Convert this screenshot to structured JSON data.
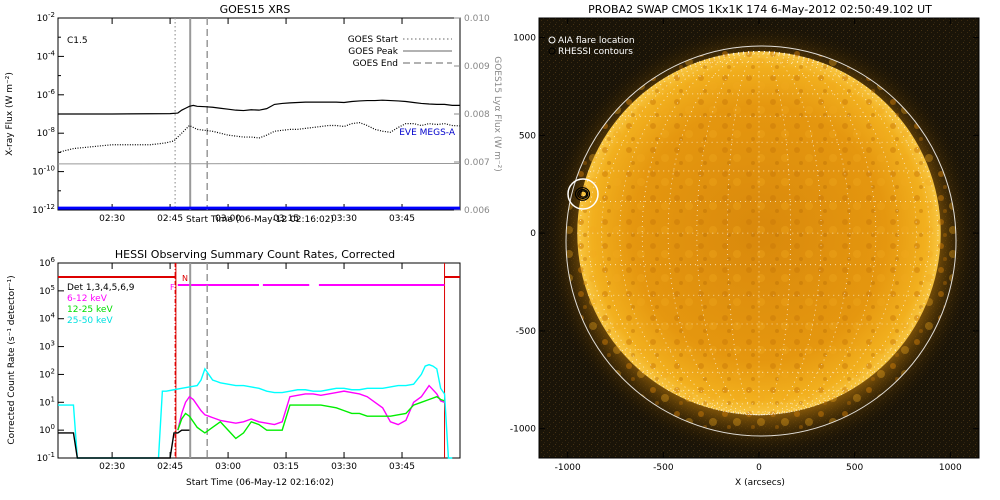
{
  "chart_data": [
    {
      "id": "goes",
      "type": "line",
      "title": "GOES15 XRS",
      "xlabel": "Start Time (06-May-12 02:16:02)",
      "ylabel_left": "X-ray Flux (W m⁻²)",
      "ylabel_right": "GOES15 Lyα Flux (W m⁻²)",
      "annotation_class": "C1.5",
      "x_tick_labels": [
        "02:30",
        "02:45",
        "03:00",
        "03:15",
        "03:30",
        "03:45"
      ],
      "x_tick_minutes": [
        30,
        45,
        60,
        75,
        90,
        105
      ],
      "xlim_minutes": [
        16,
        120
      ],
      "ylim_log": [
        -12,
        -2
      ],
      "y_left_tick_exps": [
        "-2",
        "-4",
        "-6",
        "-8",
        "-10",
        "-12"
      ],
      "y_right_ticks": [
        "0.010",
        "0.009",
        "0.008",
        "0.007",
        "0.006"
      ],
      "ylim_right": [
        0.006,
        0.01
      ],
      "legend": [
        {
          "label": "GOES Start",
          "style": "dotted"
        },
        {
          "label": "GOES Peak",
          "style": "solid"
        },
        {
          "label": "GOES End",
          "style": "dashed"
        }
      ],
      "eve_label": "EVE MEGS-A",
      "colors": {
        "eve": "#0000ff",
        "lya": "#999999",
        "markers": "#a0a0a0"
      },
      "marker_minutes": {
        "start": 46.3,
        "peak": 50.2,
        "end": 54.6
      },
      "series": [
        {
          "key": "long",
          "style": "solid",
          "x": [
            16,
            30,
            45,
            47,
            48,
            49,
            50,
            51,
            52,
            54,
            56,
            58,
            60,
            62,
            64,
            66,
            68,
            70,
            72,
            74,
            76,
            78,
            80,
            82,
            84,
            86,
            88,
            90,
            92,
            94,
            96,
            98,
            100,
            102,
            104,
            106,
            108,
            110,
            112,
            114,
            116,
            118,
            120
          ],
          "log_y": [
            -7.0,
            -7.0,
            -6.98,
            -6.95,
            -6.8,
            -6.7,
            -6.6,
            -6.55,
            -6.6,
            -6.62,
            -6.65,
            -6.7,
            -6.75,
            -6.8,
            -6.82,
            -6.78,
            -6.8,
            -6.72,
            -6.5,
            -6.45,
            -6.42,
            -6.4,
            -6.38,
            -6.38,
            -6.38,
            -6.38,
            -6.38,
            -6.4,
            -6.35,
            -6.32,
            -6.3,
            -6.3,
            -6.28,
            -6.3,
            -6.32,
            -6.35,
            -6.4,
            -6.45,
            -6.48,
            -6.5,
            -6.5,
            -6.55,
            -6.55
          ]
        },
        {
          "key": "short",
          "style": "dotted",
          "x": [
            16,
            20,
            25,
            30,
            35,
            40,
            44,
            46,
            48,
            50,
            52,
            54,
            56,
            58,
            60,
            62,
            64,
            66,
            68,
            70,
            72,
            74,
            76,
            78,
            80,
            82,
            84,
            86,
            88,
            90,
            92,
            94,
            96,
            98,
            100,
            102,
            104,
            106,
            108,
            110,
            112,
            114,
            116,
            118,
            120
          ],
          "log_y": [
            -9.0,
            -8.8,
            -8.7,
            -8.6,
            -8.6,
            -8.6,
            -8.5,
            -8.4,
            -8.0,
            -7.6,
            -7.8,
            -7.85,
            -7.9,
            -8.0,
            -8.1,
            -8.15,
            -8.2,
            -8.2,
            -8.25,
            -8.1,
            -7.9,
            -7.85,
            -7.8,
            -7.8,
            -7.75,
            -7.7,
            -7.65,
            -7.6,
            -7.6,
            -7.65,
            -7.5,
            -7.45,
            -7.6,
            -7.8,
            -7.9,
            -7.95,
            -7.7,
            -7.5,
            -7.5,
            -7.6,
            -7.5,
            -7.55,
            -7.5,
            -7.6,
            -7.62
          ]
        },
        {
          "key": "lya",
          "style": "solid",
          "axis": "right",
          "x": [
            16,
            120
          ],
          "y": [
            0.00696,
            0.00697
          ]
        },
        {
          "key": "eve",
          "style": "solid",
          "log_y_const": -11.9
        }
      ]
    },
    {
      "id": "hessi",
      "type": "line",
      "title": "HESSI Observing Summary Count Rates, Corrected",
      "xlabel": "Start Time (06-May-12 02:16:02)",
      "ylabel": "Corrected Count Rate (s⁻¹ detector⁻¹)",
      "x_tick_labels": [
        "02:30",
        "02:45",
        "03:00",
        "03:15",
        "03:30",
        "03:45"
      ],
      "x_tick_minutes": [
        30,
        45,
        60,
        75,
        90,
        105
      ],
      "xlim_minutes": [
        16,
        120
      ],
      "ylim_log": [
        -1,
        6
      ],
      "y_tick_exps": [
        "-1",
        "0",
        "1",
        "2",
        "3",
        "4",
        "5",
        "6"
      ],
      "legend_title": "Det 1,3,4,5,6,9",
      "legend": [
        {
          "label": "6-12 keV",
          "color": "#ff00ff"
        },
        {
          "label": "12-25 keV",
          "color": "#00ee00"
        },
        {
          "label": "25-50 keV",
          "color": "#00ffff"
        }
      ],
      "flags": {
        "night_label": "N",
        "flare_label": "F",
        "night_color": "#dd0000",
        "flare_color": "#ff00ff"
      },
      "night_bars": [
        [
          16,
          46.5
        ],
        [
          116,
          120
        ]
      ],
      "flare_bar_minutes": [
        47,
        116
      ],
      "flare_gaps": [
        [
          68,
          69
        ],
        [
          81,
          83.5
        ]
      ],
      "night_lines_minutes": [
        46.5,
        116
      ],
      "marker_minutes": {
        "start": 46.3,
        "peak": 50.2,
        "end": 54.6
      },
      "series": [
        {
          "name": "6-12 keV",
          "color": "#ff00ff",
          "x": [
            47,
            48,
            49,
            50,
            51,
            52,
            53,
            54,
            55,
            56,
            57,
            58,
            60,
            62,
            64,
            66,
            68,
            70,
            72,
            74,
            76,
            78,
            80,
            82,
            84,
            86,
            88,
            90,
            92,
            94,
            96,
            98,
            100,
            102,
            104,
            106,
            108,
            110,
            112,
            114,
            115,
            116
          ],
          "log_y": [
            0.0,
            0.6,
            1.0,
            1.2,
            1.1,
            0.9,
            0.7,
            0.55,
            0.5,
            0.45,
            0.4,
            0.35,
            0.3,
            0.25,
            0.3,
            0.4,
            0.3,
            0.25,
            0.2,
            0.3,
            1.2,
            1.25,
            1.3,
            1.3,
            1.25,
            1.3,
            1.35,
            1.4,
            1.35,
            1.3,
            1.2,
            1.0,
            0.8,
            0.3,
            0.2,
            0.35,
            1.0,
            1.2,
            1.6,
            1.3,
            1.05,
            1.0
          ]
        },
        {
          "name": "12-25 keV",
          "color": "#00ee00",
          "x": [
            47,
            48,
            49,
            50,
            51,
            52,
            53,
            54,
            56,
            58,
            60,
            62,
            64,
            66,
            68,
            70,
            72,
            74,
            76,
            78,
            80,
            82,
            84,
            86,
            88,
            90,
            92,
            94,
            96,
            98,
            100,
            102,
            104,
            106,
            108,
            110,
            112,
            114,
            115,
            116
          ],
          "log_y": [
            0.0,
            0.4,
            0.6,
            0.5,
            0.3,
            0.1,
            0.0,
            -0.1,
            0.1,
            0.3,
            0.0,
            -0.3,
            -0.1,
            0.3,
            0.2,
            0.0,
            0.0,
            0.0,
            0.9,
            0.9,
            0.9,
            0.9,
            0.9,
            0.85,
            0.8,
            0.7,
            0.6,
            0.6,
            0.5,
            0.5,
            0.5,
            0.5,
            0.55,
            0.6,
            0.9,
            1.0,
            1.1,
            1.2,
            1.1,
            1.05
          ]
        },
        {
          "name": "25-50 keV",
          "color": "#00ffff",
          "x": [
            16,
            18,
            19,
            20,
            21,
            42,
            43,
            44,
            46,
            48,
            50,
            52,
            53,
            54,
            55,
            56,
            57,
            58,
            60,
            62,
            64,
            66,
            68,
            70,
            72,
            74,
            76,
            78,
            80,
            82,
            84,
            86,
            88,
            90,
            92,
            94,
            96,
            98,
            100,
            102,
            104,
            106,
            108,
            110,
            111,
            112,
            113,
            114,
            115,
            116,
            117,
            118
          ],
          "log_y": [
            0.9,
            0.9,
            0.9,
            0.9,
            -1.0,
            -1.0,
            1.4,
            1.4,
            1.45,
            1.5,
            1.55,
            1.6,
            1.8,
            2.2,
            2.0,
            1.8,
            1.75,
            1.7,
            1.65,
            1.6,
            1.6,
            1.55,
            1.5,
            1.4,
            1.35,
            1.35,
            1.4,
            1.45,
            1.45,
            1.4,
            1.4,
            1.45,
            1.5,
            1.5,
            1.45,
            1.45,
            1.5,
            1.5,
            1.5,
            1.55,
            1.6,
            1.6,
            1.65,
            2.0,
            2.3,
            2.35,
            2.3,
            2.2,
            1.5,
            1.3,
            -1.0,
            -1.0
          ]
        },
        {
          "name": "unlabeled",
          "color": "#000000",
          "x": [
            16,
            20,
            21,
            45,
            46,
            47,
            48,
            50
          ],
          "log_y": [
            -0.1,
            -0.1,
            -1.0,
            -1.0,
            -0.1,
            -0.1,
            0.0,
            0.0
          ]
        }
      ]
    },
    {
      "id": "swap",
      "type": "image",
      "title": "PROBA2 SWAP CMOS 1Kx1K 174   6-May-2012 02:50:49.102 UT",
      "xlabel": "X (arcsecs)",
      "x_tick_labels": [
        "-1000",
        "-500",
        "0",
        "500",
        "1000"
      ],
      "y_tick_labels": [
        "1000",
        "500",
        "0",
        "-500",
        "-1000"
      ],
      "tick_values": [
        -1000,
        -500,
        0,
        500,
        1000
      ],
      "xlim": [
        -1150,
        1150
      ],
      "ylim": [
        -1150,
        1100
      ],
      "solar_radius_arcsec": 950,
      "flare_location": [
        -920,
        200
      ],
      "legend": [
        "AIA flare location",
        "RHESSI contours"
      ]
    }
  ]
}
